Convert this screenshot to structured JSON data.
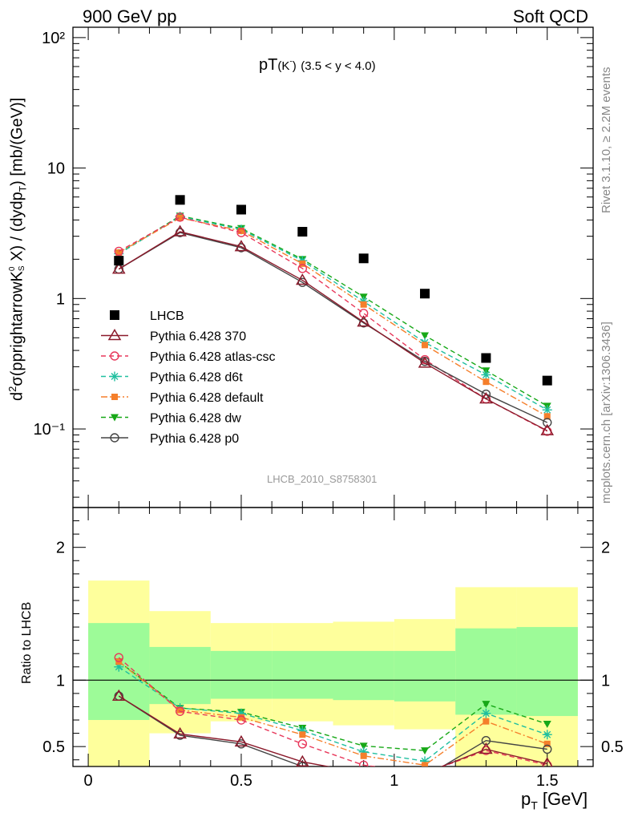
{
  "header": {
    "left": "900 GeV pp",
    "right": "Soft QCD"
  },
  "side_labels": {
    "upper": "Rivet 3.1.10, ≥ 2.2M events",
    "lower": "mcplots.cern.ch [arXiv:1306.3436]"
  },
  "analysis_id": "LHCB_2010_S8758301",
  "plot_title": {
    "main": "pT",
    "particle": "(K",
    "charge": "-",
    "close": ")",
    "range": "(3.5 < y < 4.0)"
  },
  "y_axis_upper": {
    "label": "d²σ(pprightarrowK⁰S X) / (dydp_T) [mb/(GeV)]",
    "label_parts": [
      "d",
      "2",
      "σ(pprightarrowK",
      "0",
      "S",
      " X) / (dydp",
      "T",
      ") [mb/(GeV)]"
    ],
    "ticks": [
      "10⁻¹",
      "1",
      "10",
      "10²"
    ]
  },
  "y_axis_lower": {
    "label": "Ratio to LHCB",
    "ticks": [
      "0.5",
      "1",
      "2"
    ]
  },
  "x_axis": {
    "label": "p_T [GeV]",
    "label_parts": [
      "p",
      "T",
      " [GeV]"
    ],
    "ticks": [
      "0",
      "0.5",
      "1",
      "1.5"
    ]
  },
  "colors": {
    "data": "#000000",
    "p370": "#8b1a2b",
    "atlas": "#e8385b",
    "d6t": "#1fbf9f",
    "default": "#f57f2b",
    "dw": "#17a817",
    "p0": "#444444",
    "band_inner": "#9dfb98",
    "band_outer": "#feff9c"
  },
  "chart_data": {
    "type": "line",
    "x": [
      0.1,
      0.3,
      0.5,
      0.7,
      0.9,
      1.1,
      1.3,
      1.5
    ],
    "x_bin_edges": [
      0.0,
      0.2,
      0.4,
      0.6,
      0.8,
      1.0,
      1.2,
      1.4,
      1.6
    ],
    "xlim": [
      -0.05,
      1.65
    ],
    "ylim_main": [
      0.025,
      120
    ],
    "log_y_main": true,
    "ylim_ratio": [
      0.35,
      2.3
    ],
    "data": {
      "name": "LHCB",
      "values": [
        1.95,
        5.7,
        4.8,
        3.25,
        2.03,
        1.09,
        0.35,
        0.235
      ]
    },
    "series": [
      {
        "name": "Pythia 6.428 370",
        "key": "p370",
        "style": "solid",
        "marker": "triangle-open",
        "values": [
          1.68,
          3.25,
          2.5,
          1.38,
          0.66,
          0.32,
          0.17,
          0.097
        ],
        "ratio": [
          0.88,
          0.595,
          0.535,
          0.385,
          0.3,
          0.3,
          0.48,
          0.37
        ]
      },
      {
        "name": "Pythia 6.428 atlas-csc",
        "key": "atlas",
        "style": "dashed",
        "marker": "circle-open",
        "values": [
          2.3,
          4.2,
          3.2,
          1.7,
          0.77,
          0.34,
          0.17,
          0.096
        ],
        "ratio": [
          1.17,
          0.765,
          0.7,
          0.52,
          0.36,
          0.3,
          0.47,
          0.36
        ]
      },
      {
        "name": "Pythia 6.428 d6t",
        "key": "d6t",
        "style": "dashed",
        "marker": "star",
        "values": [
          2.2,
          4.25,
          3.38,
          1.95,
          0.95,
          0.46,
          0.26,
          0.14
        ],
        "ratio": [
          1.1,
          0.79,
          0.75,
          0.62,
          0.46,
          0.39,
          0.75,
          0.59
        ]
      },
      {
        "name": "Pythia 6.428 default",
        "key": "default",
        "style": "dashdot",
        "marker": "square",
        "values": [
          2.25,
          4.15,
          3.3,
          1.85,
          0.9,
          0.44,
          0.23,
          0.125
        ],
        "ratio": [
          1.14,
          0.775,
          0.72,
          0.59,
          0.43,
          0.36,
          0.69,
          0.52
        ]
      },
      {
        "name": "Pythia 6.428 dw",
        "key": "dw",
        "style": "dashed",
        "marker": "triangle-down",
        "values": [
          2.22,
          4.3,
          3.45,
          2.0,
          1.03,
          0.52,
          0.28,
          0.15
        ],
        "ratio": [
          1.14,
          0.79,
          0.76,
          0.64,
          0.505,
          0.47,
          0.82,
          0.67
        ]
      },
      {
        "name": "Pythia 6.428 p0",
        "key": "p0",
        "style": "solid",
        "marker": "circle-open",
        "values": [
          1.68,
          3.2,
          2.45,
          1.33,
          0.65,
          0.33,
          0.185,
          0.112
        ],
        "ratio": [
          0.88,
          0.585,
          0.52,
          0.35,
          0.28,
          0.27,
          0.545,
          0.48
        ]
      }
    ],
    "ratio_band_inner": [
      [
        0.7,
        1.43
      ],
      [
        0.82,
        1.25
      ],
      [
        0.86,
        1.22
      ],
      [
        0.86,
        1.22
      ],
      [
        0.85,
        1.22
      ],
      [
        0.84,
        1.22
      ],
      [
        0.74,
        1.39
      ],
      [
        0.73,
        1.4
      ]
    ],
    "ratio_band_outer": [
      [
        0.35,
        1.75
      ],
      [
        0.6,
        1.52
      ],
      [
        0.69,
        1.43
      ],
      [
        0.69,
        1.43
      ],
      [
        0.66,
        1.44
      ],
      [
        0.63,
        1.46
      ],
      [
        0.35,
        1.7
      ],
      [
        0.35,
        1.7
      ]
    ]
  }
}
